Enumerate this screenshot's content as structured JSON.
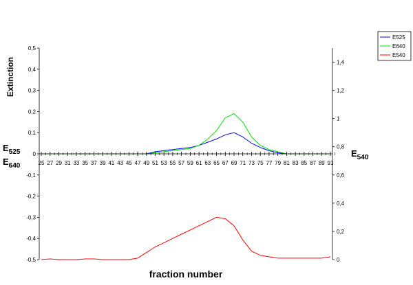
{
  "chart_data": {
    "type": "line",
    "xlabel": "fraction number",
    "ylabel": "Extinction",
    "left_axis_labels": [
      "E525",
      "E640"
    ],
    "right_axis_label": "E540",
    "ylim_left": [
      -0.5,
      0.5
    ],
    "yticks_left": [
      "0,5",
      "0,4",
      "0,3",
      "0,2",
      "0,1",
      "0",
      "-0,1",
      "-0,2",
      "-0,3",
      "-0,4",
      "-0,5"
    ],
    "ylim_right": [
      0,
      1.5
    ],
    "yticks_right": [
      "1,4",
      "1,2",
      "1",
      "0,8",
      "0,6",
      "0,4",
      "0,2",
      "0"
    ],
    "xlim": [
      25,
      91
    ],
    "xticks": [
      25,
      27,
      29,
      31,
      33,
      35,
      37,
      39,
      41,
      43,
      45,
      47,
      49,
      51,
      53,
      55,
      57,
      59,
      61,
      63,
      65,
      67,
      69,
      71,
      73,
      75,
      77,
      79,
      81,
      83,
      85,
      87,
      89,
      91
    ],
    "grid": false,
    "legend_position": "top-right",
    "colors": {
      "E525": "#0000ff",
      "E640": "#00e000",
      "E540": "#ff0000",
      "axis": "#000000"
    },
    "series": [
      {
        "name": "E525",
        "axis": "left",
        "x": [
          25,
          27,
          29,
          31,
          33,
          35,
          37,
          39,
          41,
          43,
          45,
          47,
          49,
          51,
          53,
          55,
          57,
          59,
          61,
          63,
          65,
          67,
          69,
          71,
          73,
          75,
          77,
          79,
          81,
          83,
          85,
          87,
          89,
          91
        ],
        "values": [
          0,
          0,
          0,
          0,
          0,
          0,
          0,
          0,
          0,
          0,
          0,
          0,
          0,
          0.01,
          0.015,
          0.02,
          0.025,
          0.03,
          0.04,
          0.055,
          0.07,
          0.09,
          0.1,
          0.08,
          0.05,
          0.03,
          0.015,
          0.005,
          0,
          0,
          0,
          0,
          0,
          0
        ]
      },
      {
        "name": "E640",
        "axis": "left",
        "x": [
          25,
          27,
          29,
          31,
          33,
          35,
          37,
          39,
          41,
          43,
          45,
          47,
          49,
          51,
          53,
          55,
          57,
          59,
          61,
          63,
          65,
          67,
          69,
          71,
          73,
          75,
          77,
          79,
          81,
          83,
          85,
          87,
          89,
          91
        ],
        "values": [
          0,
          0,
          0,
          0,
          0,
          0,
          0,
          0,
          0,
          0,
          0,
          0,
          0,
          0.005,
          0.01,
          0.015,
          0.02,
          0.025,
          0.04,
          0.07,
          0.11,
          0.17,
          0.19,
          0.15,
          0.08,
          0.04,
          0.02,
          0.01,
          0,
          0,
          0,
          0,
          0,
          0
        ]
      },
      {
        "name": "E540",
        "axis": "right",
        "x": [
          25,
          27,
          29,
          31,
          33,
          35,
          37,
          39,
          41,
          43,
          45,
          47,
          49,
          51,
          53,
          55,
          57,
          59,
          61,
          63,
          65,
          67,
          69,
          71,
          73,
          75,
          77,
          79,
          81,
          83,
          85,
          87,
          89,
          91
        ],
        "values": [
          0,
          0.005,
          0,
          0,
          0,
          0.005,
          0.005,
          0,
          0,
          0,
          0,
          0.01,
          0.05,
          0.09,
          0.12,
          0.15,
          0.18,
          0.21,
          0.24,
          0.27,
          0.3,
          0.29,
          0.24,
          0.14,
          0.06,
          0.03,
          0.02,
          0.01,
          0.01,
          0.01,
          0.01,
          0.01,
          0.01,
          0.02
        ]
      }
    ]
  }
}
